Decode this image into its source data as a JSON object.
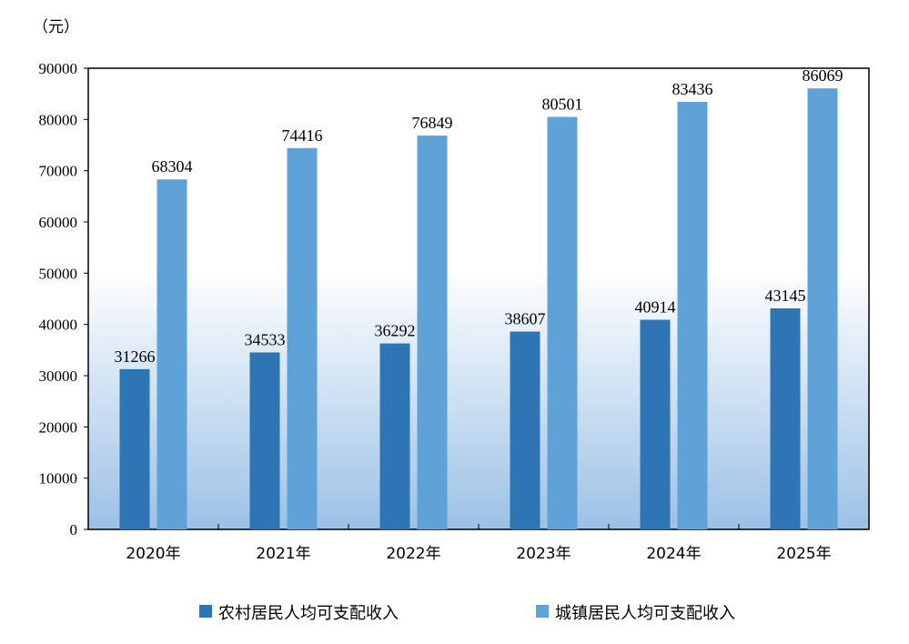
{
  "chart_data": {
    "type": "bar",
    "unit_label": "（元）",
    "categories": [
      "2020年",
      "2021年",
      "2022年",
      "2023年",
      "2024年",
      "2025年"
    ],
    "series": [
      {
        "name": "农村居民人均可支配收入",
        "color": "#2E75B6",
        "values": [
          31266,
          34533,
          36292,
          38607,
          40914,
          43145
        ]
      },
      {
        "name": "城镇居民人均可支配收入",
        "color": "#5FA2D8",
        "values": [
          68304,
          74416,
          76849,
          80501,
          83436,
          86069
        ]
      }
    ],
    "ylim": [
      0,
      90000
    ],
    "yticks": [
      0,
      10000,
      20000,
      30000,
      40000,
      50000,
      60000,
      70000,
      80000,
      90000
    ],
    "grid": false,
    "data_labels": true,
    "legend_position": "bottom",
    "plot_background": "gradient white-to-light-blue (bottom half)"
  }
}
